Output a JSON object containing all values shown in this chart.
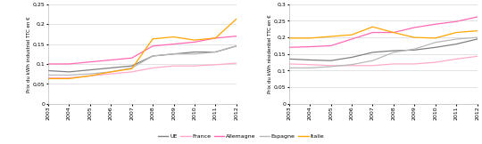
{
  "years": [
    2003,
    2004,
    2005,
    2006,
    2007,
    2008,
    2009,
    2010,
    2011,
    2012
  ],
  "industrial": {
    "UE": [
      0.083,
      0.08,
      0.085,
      0.09,
      0.095,
      0.12,
      0.125,
      0.13,
      0.13,
      0.145
    ],
    "France": [
      0.065,
      0.065,
      0.07,
      0.075,
      0.08,
      0.09,
      0.095,
      0.095,
      0.098,
      0.102
    ],
    "Allemagne": [
      0.1,
      0.1,
      0.105,
      0.11,
      0.115,
      0.145,
      0.15,
      0.155,
      0.165,
      0.17
    ],
    "Espagne": [
      0.072,
      0.072,
      0.075,
      0.08,
      0.09,
      0.12,
      0.125,
      0.125,
      0.13,
      0.145
    ],
    "Italie": [
      0.063,
      0.063,
      0.07,
      0.08,
      0.088,
      0.163,
      0.168,
      0.16,
      0.165,
      0.213
    ]
  },
  "residential": {
    "UE": [
      0.135,
      0.132,
      0.13,
      0.14,
      0.155,
      0.16,
      0.162,
      0.17,
      0.18,
      0.195
    ],
    "France": [
      0.12,
      0.118,
      0.115,
      0.115,
      0.115,
      0.12,
      0.12,
      0.125,
      0.135,
      0.143
    ],
    "Allemagne": [
      0.17,
      0.172,
      0.175,
      0.195,
      0.215,
      0.215,
      0.23,
      0.24,
      0.248,
      0.262
    ],
    "Espagne": [
      0.108,
      0.108,
      0.112,
      0.118,
      0.13,
      0.155,
      0.165,
      0.185,
      0.195,
      0.2
    ],
    "Italie": [
      0.198,
      0.198,
      0.203,
      0.208,
      0.232,
      0.215,
      0.2,
      0.198,
      0.215,
      0.22
    ]
  },
  "colors": {
    "UE": "#808080",
    "France": "#ffaacc",
    "Allemagne": "#ff69b4",
    "Espagne": "#b8b8b8",
    "Italie": "#ffa500"
  },
  "ylabel_left": "Prix du kWh industriel TTC en €",
  "ylabel_right": "Prix du kWh résidentiel TTC en €",
  "ylim_left": [
    0,
    0.25
  ],
  "ylim_right": [
    0,
    0.3
  ],
  "yticks_left": [
    0,
    0.05,
    0.1,
    0.15,
    0.2,
    0.25
  ],
  "yticks_right": [
    0,
    0.05,
    0.1,
    0.15,
    0.2,
    0.25,
    0.3
  ],
  "bg_color": "#ffffff",
  "grid_color": "#d8d8d8",
  "legend_order": [
    "UE",
    "France",
    "Allemagne",
    "Espagne",
    "Italie"
  ]
}
